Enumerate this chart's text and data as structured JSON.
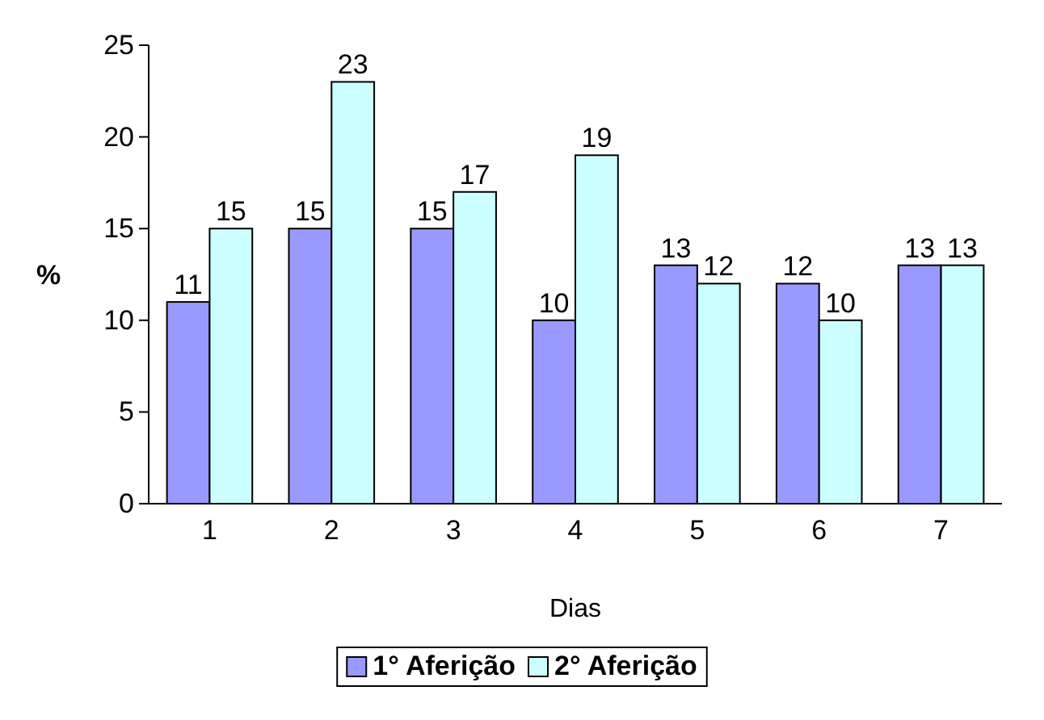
{
  "chart_data": {
    "type": "bar",
    "categories": [
      "1",
      "2",
      "3",
      "4",
      "5",
      "6",
      "7"
    ],
    "series": [
      {
        "name": "1° Aferição",
        "color": "#9999ff",
        "values": [
          11,
          15,
          15,
          10,
          13,
          12,
          13
        ]
      },
      {
        "name": "2° Aferição",
        "color": "#ccffff",
        "values": [
          15,
          23,
          17,
          19,
          12,
          10,
          13
        ]
      }
    ],
    "xlabel": "Dias",
    "ylabel": "%",
    "ylim": [
      0,
      25
    ],
    "yticks": [
      0,
      5,
      10,
      15,
      20,
      25
    ],
    "grid": false,
    "legend": "bottom",
    "data_labels": true
  }
}
